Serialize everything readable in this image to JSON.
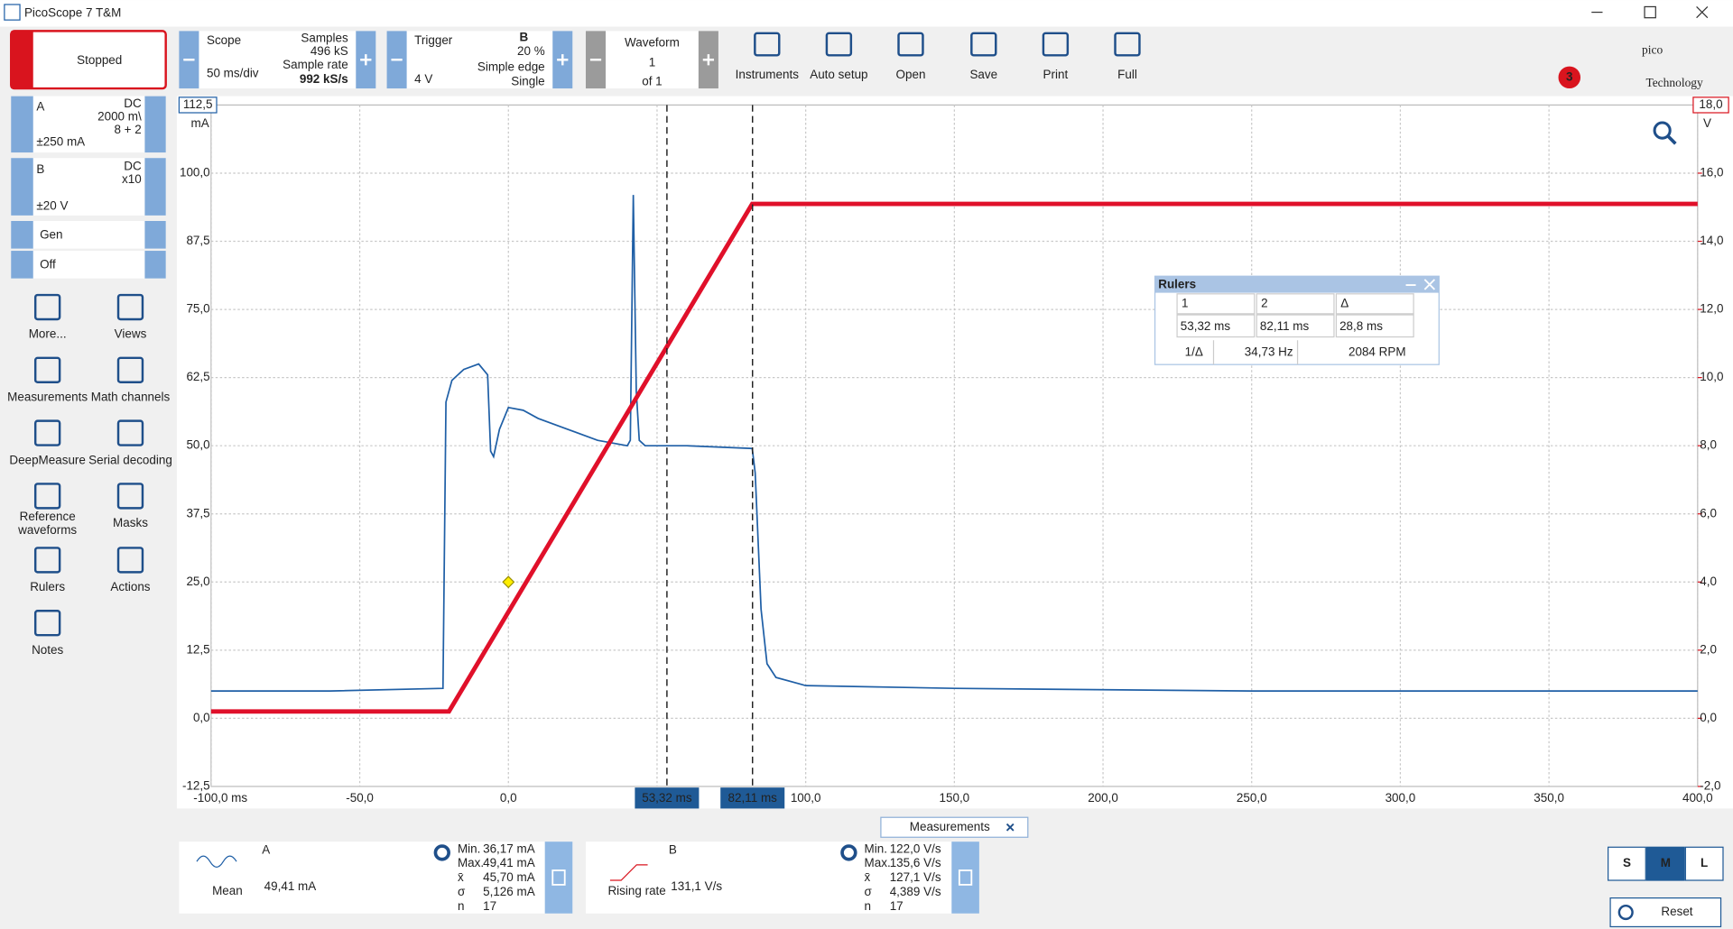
{
  "app": {
    "title": "PicoScope 7 T&M"
  },
  "toolbar": {
    "status": "Stopped",
    "scope": {
      "label": "Scope",
      "timebase": "50 ms/div",
      "samples_label": "Samples",
      "samples": "496 kS",
      "rate_label": "Sample rate",
      "rate": "992 kS/s"
    },
    "trigger": {
      "label": "Trigger",
      "level": "4 V",
      "channel": "B",
      "pre": "20 %",
      "type": "Simple edge",
      "mode": "Single"
    },
    "waveform": {
      "label": "Waveform",
      "index": "1",
      "of": "of 1"
    },
    "buttons": [
      "Instruments",
      "Auto setup",
      "Open",
      "Save",
      "Print",
      "Full"
    ],
    "logo": "pico",
    "logo_sub": "Technology",
    "badge": "3"
  },
  "channels": {
    "a": {
      "name": "A",
      "coupling": "DC",
      "probe": "2000 m\\",
      "filter": "8 + 2",
      "range": "±250 mA"
    },
    "b": {
      "name": "B",
      "coupling": "DC",
      "probe": "x10",
      "range": "±20 V"
    },
    "gen": [
      "Gen",
      "Off"
    ]
  },
  "tools": [
    "More...",
    "Views",
    "Measurements",
    "Math channels",
    "DeepMeasure",
    "Serial decoding",
    "Reference waveforms",
    "Masks",
    "Rulers",
    "Actions",
    "Notes"
  ],
  "chart_data": {
    "type": "line",
    "ylabel": "mA",
    "y2label": "V",
    "xlim": [
      -100,
      400
    ],
    "xticks": [
      {
        "value": -100,
        "label": "-100,0 ms"
      },
      {
        "value": -50,
        "label": "-50,0"
      },
      {
        "value": 0,
        "label": "0,0"
      },
      {
        "value": 50,
        "label": "50,0"
      },
      {
        "value": 100,
        "label": "100,0"
      },
      {
        "value": 150,
        "label": "150,0"
      },
      {
        "value": 200,
        "label": "200,0"
      },
      {
        "value": 250,
        "label": "250,0"
      },
      {
        "value": 300,
        "label": "300,0"
      },
      {
        "value": 350,
        "label": "350,0"
      },
      {
        "value": 400,
        "label": "400,0"
      }
    ],
    "ylim": [
      -12.5,
      112.5
    ],
    "yticks": [
      {
        "value": -12.5,
        "label": "-12,5"
      },
      {
        "value": 0,
        "label": "0,0"
      },
      {
        "value": 12.5,
        "label": "12,5"
      },
      {
        "value": 25,
        "label": "25,0"
      },
      {
        "value": 37.5,
        "label": "37,5"
      },
      {
        "value": 50,
        "label": "50,0"
      },
      {
        "value": 62.5,
        "label": "62,5"
      },
      {
        "value": 75,
        "label": "75,0"
      },
      {
        "value": 87.5,
        "label": "87,5"
      },
      {
        "value": 100,
        "label": "100,0"
      },
      {
        "value": 112.5,
        "label": "112,5"
      }
    ],
    "y2lim": [
      -2,
      18
    ],
    "y2ticks": [
      {
        "value": -2,
        "label": "-2,0"
      },
      {
        "value": 0,
        "label": "0,0"
      },
      {
        "value": 2,
        "label": "2,0"
      },
      {
        "value": 4,
        "label": "4,0"
      },
      {
        "value": 6,
        "label": "6,0"
      },
      {
        "value": 8,
        "label": "8,0"
      },
      {
        "value": 10,
        "label": "10,0"
      },
      {
        "value": 12,
        "label": "12,0"
      },
      {
        "value": 14,
        "label": "14,0"
      },
      {
        "value": 16,
        "label": "16,0"
      },
      {
        "value": 18,
        "label": "18,0"
      }
    ],
    "grid": true,
    "series": [
      {
        "name": "A",
        "color": "#1f5fa6",
        "x": [
          -100,
          -60,
          -22,
          -21,
          -19,
          -15,
          -10,
          -7,
          -6,
          -5,
          -3,
          0,
          5,
          10,
          20,
          30,
          40,
          41,
          42,
          43,
          44,
          46,
          60,
          82,
          83,
          85,
          87,
          90,
          100,
          150,
          250,
          400
        ],
        "values": [
          5,
          5,
          5.5,
          58,
          62,
          64,
          65,
          63,
          49,
          48,
          53,
          57,
          56.5,
          55,
          53,
          51,
          50,
          51,
          96,
          60,
          51,
          50,
          50,
          49.5,
          45,
          20,
          10,
          7.5,
          6,
          5.5,
          5,
          5
        ]
      },
      {
        "name": "B",
        "color": "#e0102a",
        "axis": "y2",
        "x": [
          -100,
          -20,
          82,
          400
        ],
        "values": [
          0.2,
          0.2,
          15.1,
          15.1
        ]
      }
    ],
    "trigger_marker": {
      "x": 0,
      "y": 4
    },
    "rulers": [
      {
        "x": 53.32,
        "label": "53,32 ms"
      },
      {
        "x": 82.11,
        "label": "82,11 ms"
      }
    ]
  },
  "rulers_window": {
    "title": "Rulers",
    "headers": [
      "1",
      "2",
      "Δ"
    ],
    "row": [
      "53,32 ms",
      "82,11 ms",
      "28,8 ms"
    ],
    "row2": [
      "1/Δ",
      "34,73 Hz",
      "2084 RPM"
    ]
  },
  "measurements": {
    "tab": "Measurements",
    "stat_labels": [
      "Min.",
      "Max.",
      "x̄",
      "σ",
      "n"
    ],
    "cards": [
      {
        "channel": "A",
        "name": "Mean",
        "value": "49,41 mA",
        "stats": [
          "36,17 mA",
          "49,41 mA",
          "45,70 mA",
          "5,126 mA",
          "17"
        ]
      },
      {
        "channel": "B",
        "name": "Rising rate",
        "value": "131,1 V/s",
        "stats": [
          "122,0 V/s",
          "135,6 V/s",
          "127,1 V/s",
          "4,389 V/s",
          "17"
        ]
      }
    ]
  },
  "size_buttons": [
    "S",
    "M",
    "L"
  ],
  "reset": "Reset"
}
